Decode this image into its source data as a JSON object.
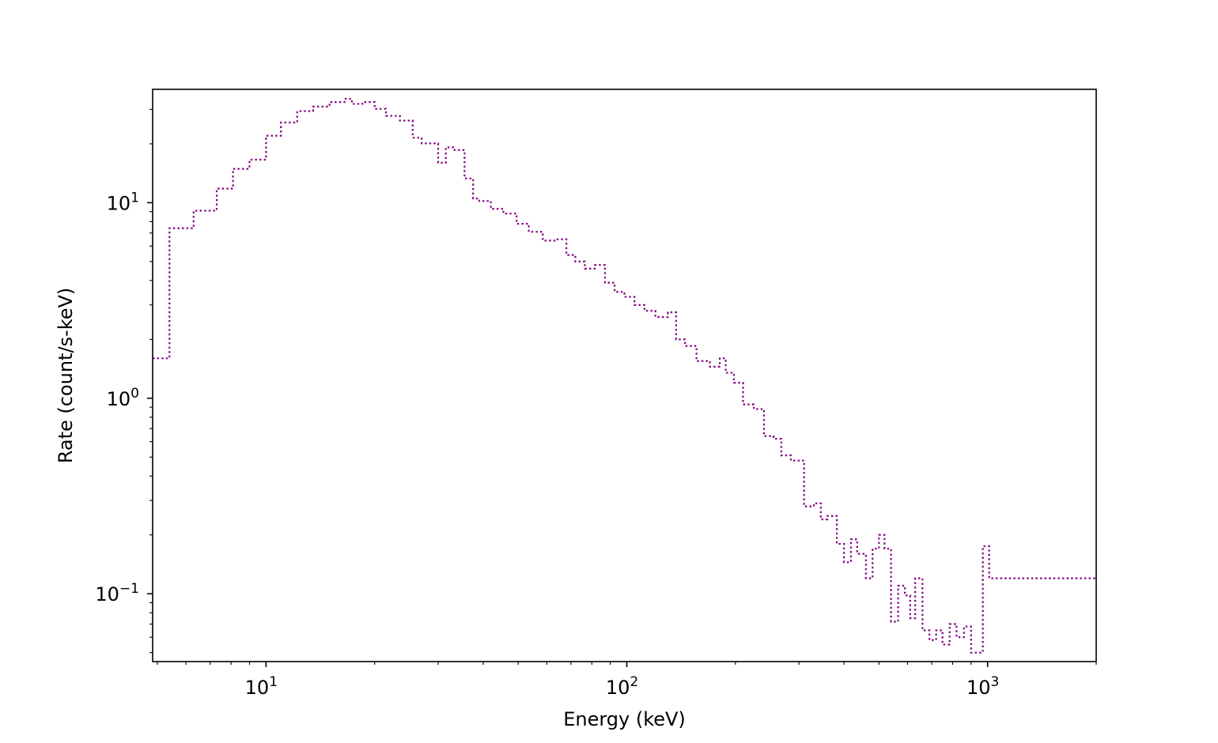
{
  "chart_data": {
    "type": "line",
    "title": "",
    "xlabel": "Energy (keV)",
    "ylabel": "Rate (count/s-keV)",
    "xscale": "log",
    "yscale": "log",
    "xlim": [
      4.85,
      2000
    ],
    "ylim": [
      0.045,
      38
    ],
    "grid": false,
    "legend": "none",
    "drawstyle": "steps-post",
    "x_ticks": [
      {
        "value": 10,
        "label": "10",
        "exp": "1"
      },
      {
        "value": 100,
        "label": "10",
        "exp": "2"
      },
      {
        "value": 1000,
        "label": "10",
        "exp": "3"
      }
    ],
    "y_ticks": [
      {
        "value": 0.1,
        "label": "10",
        "exp": "−1"
      },
      {
        "value": 1,
        "label": "10",
        "exp": "0"
      },
      {
        "value": 10,
        "label": "10",
        "exp": "1"
      }
    ],
    "series": [
      {
        "color": "#800080",
        "linestyle": "dotted",
        "edges": [
          4.85,
          5.4,
          6.3,
          7.3,
          8.1,
          9.0,
          10.0,
          11.0,
          12.2,
          13.5,
          15.0,
          16.5,
          17.3,
          18.5,
          20.0,
          21.5,
          23.5,
          25.5,
          27.0,
          30.0,
          31.5,
          33.0,
          35.5,
          37.5,
          39.0,
          42.0,
          45.5,
          49.5,
          53.5,
          58.5,
          63.5,
          68.0,
          72.0,
          76.5,
          81.5,
          87.0,
          92.5,
          98.5,
          105.0,
          112.0,
          120.0,
          130.0,
          137.0,
          145.0,
          156.0,
          170.0,
          181.0,
          188.0,
          198.0,
          210.0,
          225.0,
          240.0,
          255.0,
          268.0,
          285.0,
          310.0,
          330.0,
          345.0,
          360.0,
          382.0,
          400.0,
          418.0,
          435.0,
          460.0,
          480.0,
          500.0,
          518.0,
          540.0,
          565.0,
          590.0,
          610.0,
          630.0,
          660.0,
          690.0,
          720.0,
          750.0,
          785.0,
          820.0,
          860.0,
          900.0,
          970.0,
          1010.0,
          2000.0
        ],
        "values": [
          1.6,
          7.4,
          9.1,
          11.8,
          14.9,
          16.6,
          22.0,
          25.7,
          29.4,
          31.0,
          32.7,
          34.0,
          32.0,
          32.7,
          30.2,
          27.8,
          26.3,
          21.5,
          20.1,
          16.0,
          19.2,
          18.6,
          13.3,
          10.5,
          10.2,
          9.3,
          8.8,
          7.8,
          7.1,
          6.4,
          6.5,
          5.4,
          5.0,
          4.6,
          4.8,
          3.9,
          3.5,
          3.3,
          3.0,
          2.8,
          2.6,
          2.75,
          2.0,
          1.85,
          1.55,
          1.45,
          1.6,
          1.35,
          1.2,
          0.93,
          0.88,
          0.64,
          0.62,
          0.51,
          0.48,
          0.28,
          0.29,
          0.24,
          0.25,
          0.18,
          0.145,
          0.19,
          0.16,
          0.12,
          0.17,
          0.2,
          0.17,
          0.072,
          0.11,
          0.098,
          0.075,
          0.12,
          0.065,
          0.058,
          0.065,
          0.055,
          0.07,
          0.06,
          0.068,
          0.05,
          0.175,
          0.12
        ]
      }
    ]
  }
}
